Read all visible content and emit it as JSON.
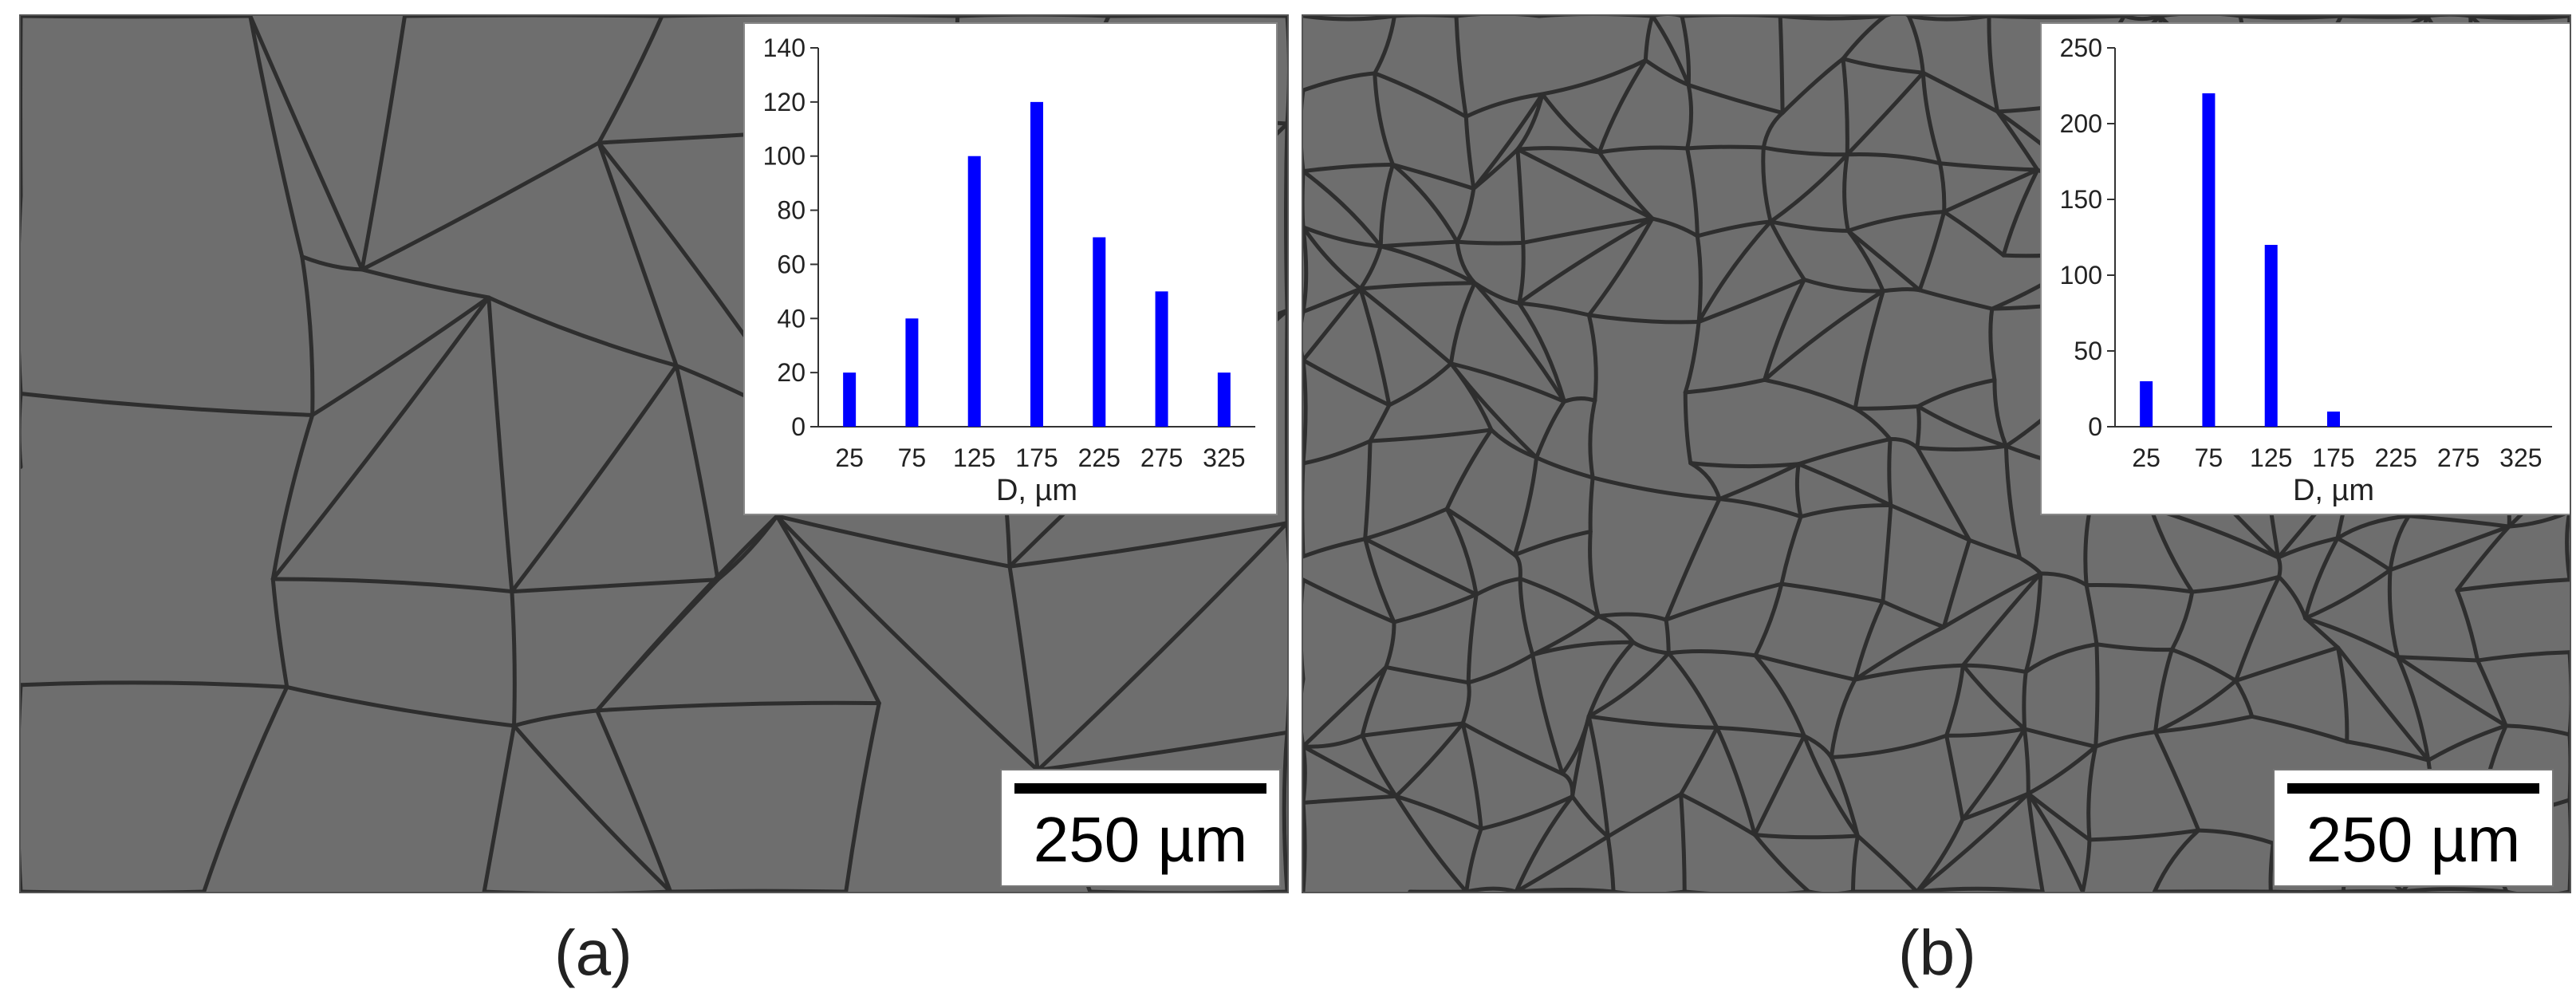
{
  "panels": [
    {
      "id": "a",
      "caption": "(a)",
      "scale_label": "250 µm",
      "crack_density": "coarse"
    },
    {
      "id": "b",
      "caption": "(b)",
      "scale_label": "250 µm",
      "crack_density": "fine"
    }
  ],
  "chart_data": [
    {
      "type": "bar",
      "panel": "a",
      "title": "",
      "xlabel": "D, µm",
      "ylabel": "",
      "categories": [
        "25",
        "75",
        "125",
        "175",
        "225",
        "275",
        "325"
      ],
      "values": [
        20,
        40,
        100,
        120,
        70,
        50,
        20
      ],
      "ylim": [
        0,
        140
      ],
      "yticks": [
        0,
        20,
        40,
        60,
        80,
        100,
        120,
        140
      ],
      "bar_color": "#0000ff",
      "grid": false
    },
    {
      "type": "bar",
      "panel": "b",
      "title": "",
      "xlabel": "D, µm",
      "ylabel": "",
      "categories": [
        "25",
        "75",
        "125",
        "175",
        "225",
        "275",
        "325"
      ],
      "values": [
        30,
        220,
        120,
        10,
        0,
        0,
        0
      ],
      "ylim": [
        0,
        250
      ],
      "yticks": [
        0,
        50,
        100,
        150,
        200,
        250
      ],
      "bar_color": "#0000ff",
      "grid": false
    }
  ],
  "colors": {
    "surface": "#6e6e6e",
    "crack": "#2e2e2e",
    "bar": "#0000ff"
  }
}
